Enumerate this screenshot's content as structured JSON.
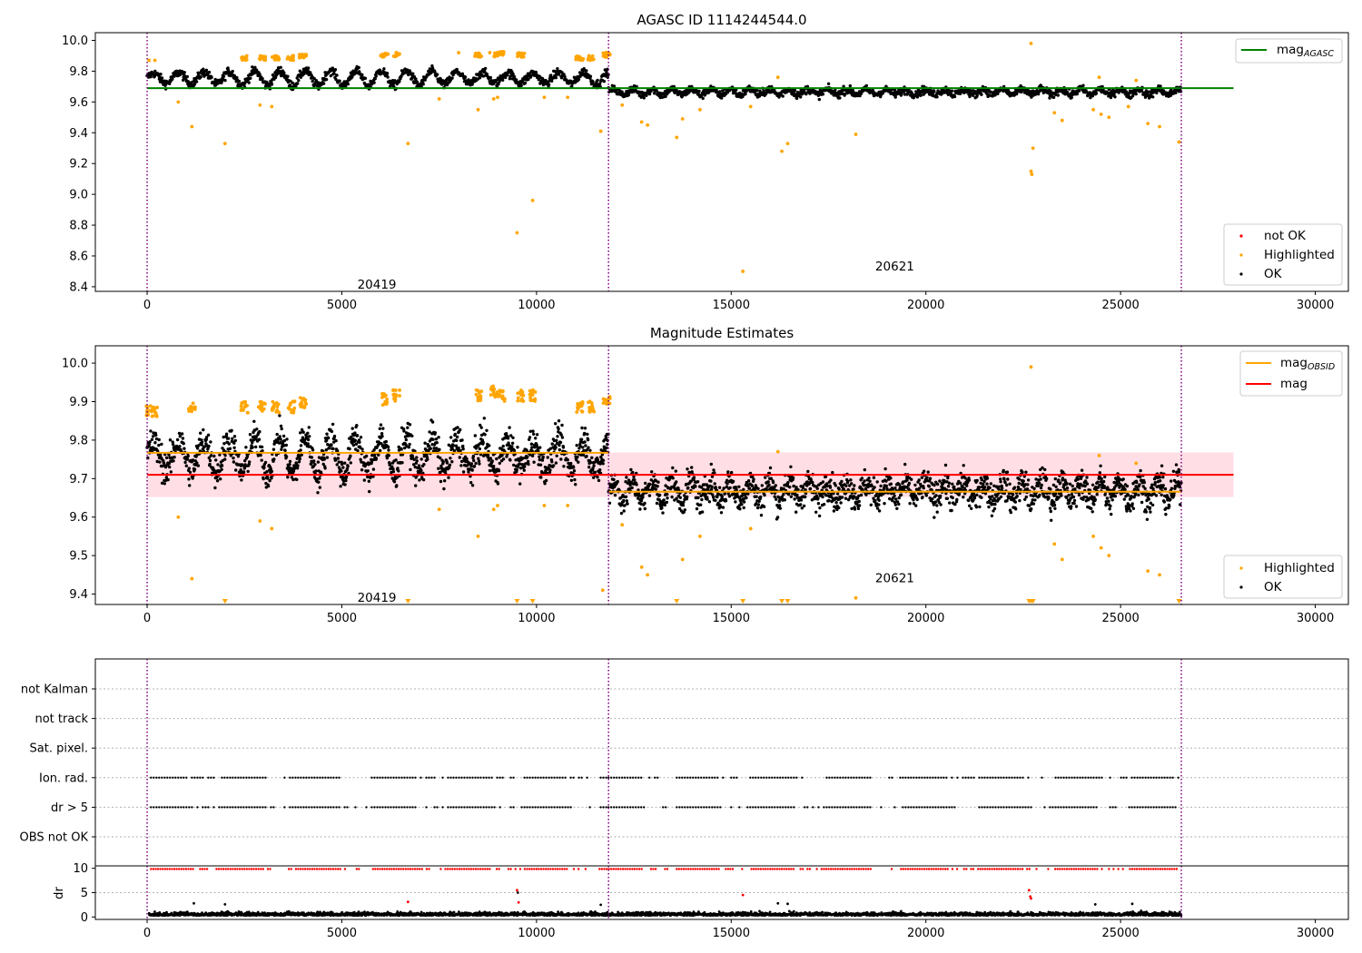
{
  "figure": {
    "title_top": "AGASC ID 1114244544.0",
    "title_mid": "Magnitude Estimates"
  },
  "colors": {
    "ok": "#000000",
    "highlighted": "#ffa500",
    "not_ok": "#ff0000",
    "mag_agasc": "#008000",
    "mag": "#ff0000",
    "mag_obsid": "#ffa500",
    "mag_band": "#ffc0cb",
    "obs_boundary": "#800080",
    "grid": "#b0b0b0"
  },
  "chart_data": [
    {
      "type": "scatter",
      "title": "AGASC ID 1114244544.0",
      "xlim": [
        -1330,
        30850
      ],
      "ylim": [
        8.37,
        10.05
      ],
      "xticks": [
        0,
        5000,
        10000,
        15000,
        20000,
        25000,
        30000
      ],
      "yticks": [
        8.4,
        8.6,
        8.8,
        9.0,
        9.2,
        9.4,
        9.6,
        9.8,
        10.0
      ],
      "ytick_labels": [
        "8.4",
        "8.6",
        "8.8",
        "9.0",
        "9.2",
        "9.4",
        "9.6",
        "9.8",
        "10.0"
      ],
      "obs_boundaries": [
        0,
        11850,
        26560
      ],
      "obs_labels": [
        {
          "text": "20419",
          "x": 5900,
          "y": 8.41
        },
        {
          "text": "20621",
          "x": 19200,
          "y": 8.53
        }
      ],
      "lines": [
        {
          "name": "mag_AGASC",
          "y": 9.69,
          "x": [
            0,
            27900
          ]
        }
      ],
      "segments": [
        {
          "x": [
            0,
            11850
          ],
          "base": 9.755,
          "amp": 0.05,
          "spread": 0.02,
          "period": 650
        },
        {
          "x": [
            11850,
            26560
          ],
          "base": 9.665,
          "amp": 0.02,
          "spread": 0.018,
          "period": 500
        }
      ],
      "highlighted": [
        [
          50,
          9.87
        ],
        [
          200,
          9.87
        ],
        [
          800,
          9.6
        ],
        [
          1150,
          9.44
        ],
        [
          2000,
          9.33
        ],
        [
          2500,
          9.88
        ],
        [
          2900,
          9.58
        ],
        [
          3200,
          9.57
        ],
        [
          3600,
          9.88
        ],
        [
          4000,
          9.89
        ],
        [
          6000,
          9.9
        ],
        [
          6400,
          9.92
        ],
        [
          6700,
          9.33
        ],
        [
          7500,
          9.62
        ],
        [
          8000,
          9.92
        ],
        [
          8500,
          9.55
        ],
        [
          8800,
          9.92
        ],
        [
          8900,
          9.62
        ],
        [
          9000,
          9.63
        ],
        [
          9500,
          8.75
        ],
        [
          9600,
          9.91
        ],
        [
          9900,
          8.96
        ],
        [
          10200,
          9.63
        ],
        [
          10800,
          9.63
        ],
        [
          11200,
          9.88
        ],
        [
          11650,
          9.41
        ],
        [
          11800,
          9.91
        ],
        [
          12200,
          9.58
        ],
        [
          12700,
          9.47
        ],
        [
          12850,
          9.45
        ],
        [
          13600,
          9.37
        ],
        [
          13750,
          9.49
        ],
        [
          14200,
          9.55
        ],
        [
          15300,
          8.5
        ],
        [
          15500,
          9.57
        ],
        [
          16200,
          9.76
        ],
        [
          16300,
          9.28
        ],
        [
          16450,
          9.33
        ],
        [
          18200,
          9.39
        ],
        [
          22700,
          9.98
        ],
        [
          22750,
          9.3
        ],
        [
          22700,
          9.15
        ],
        [
          22720,
          9.13
        ],
        [
          23300,
          9.53
        ],
        [
          23500,
          9.48
        ],
        [
          24300,
          9.55
        ],
        [
          24450,
          9.76
        ],
        [
          24500,
          9.52
        ],
        [
          24700,
          9.5
        ],
        [
          25200,
          9.57
        ],
        [
          25400,
          9.74
        ],
        [
          25700,
          9.46
        ],
        [
          26000,
          9.44
        ],
        [
          26500,
          9.34
        ]
      ],
      "highlighted_clusters": [
        [
          2500,
          9.88
        ],
        [
          2950,
          9.88
        ],
        [
          3300,
          9.88
        ],
        [
          3700,
          9.88
        ],
        [
          4000,
          9.89
        ],
        [
          6100,
          9.9
        ],
        [
          6400,
          9.9
        ],
        [
          8500,
          9.9
        ],
        [
          9000,
          9.9
        ],
        [
          9100,
          9.91
        ],
        [
          9600,
          9.9
        ],
        [
          11100,
          9.88
        ],
        [
          11400,
          9.88
        ],
        [
          11800,
          9.9
        ]
      ],
      "legend_lines": [
        "mag_AGASC"
      ],
      "legend_points": [
        "not OK",
        "Highlighted",
        "OK"
      ]
    },
    {
      "type": "scatter",
      "title": "Magnitude Estimates",
      "xlim": [
        -1330,
        30850
      ],
      "ylim": [
        9.373,
        10.045
      ],
      "xticks": [
        0,
        5000,
        10000,
        15000,
        20000,
        25000,
        30000
      ],
      "yticks": [
        9.4,
        9.5,
        9.6,
        9.7,
        9.8,
        9.9,
        10.0
      ],
      "ytick_labels": [
        "9.4",
        "9.5",
        "9.6",
        "9.7",
        "9.8",
        "9.9",
        "10.0"
      ],
      "obs_boundaries": [
        0,
        11850,
        26560
      ],
      "obs_labels": [
        {
          "text": "20419",
          "x": 5900,
          "y": 9.39
        },
        {
          "text": "20621",
          "x": 19200,
          "y": 9.44
        }
      ],
      "mag": 9.71,
      "mag_band": [
        9.652,
        9.768
      ],
      "mag_obsid": [
        {
          "x": [
            0,
            11850
          ],
          "y": 9.767
        },
        {
          "x": [
            11850,
            26560
          ],
          "y": 9.666
        }
      ],
      "segments": [
        {
          "x": [
            0,
            11850
          ],
          "base": 9.76,
          "amp": 0.05,
          "spread": 0.03,
          "period": 650
        },
        {
          "x": [
            11850,
            26560
          ],
          "base": 9.668,
          "amp": 0.025,
          "spread": 0.028,
          "period": 500
        }
      ],
      "highlighted": [
        [
          800,
          9.6
        ],
        [
          1150,
          9.44
        ],
        [
          2900,
          9.59
        ],
        [
          3200,
          9.57
        ],
        [
          7500,
          9.62
        ],
        [
          8500,
          9.55
        ],
        [
          8900,
          9.62
        ],
        [
          9000,
          9.63
        ],
        [
          10200,
          9.63
        ],
        [
          10800,
          9.63
        ],
        [
          11700,
          9.41
        ],
        [
          12200,
          9.58
        ],
        [
          12700,
          9.47
        ],
        [
          12850,
          9.45
        ],
        [
          13750,
          9.49
        ],
        [
          14200,
          9.55
        ],
        [
          15500,
          9.57
        ],
        [
          16200,
          9.77
        ],
        [
          18200,
          9.39
        ],
        [
          22700,
          9.99
        ],
        [
          23300,
          9.53
        ],
        [
          23500,
          9.49
        ],
        [
          24300,
          9.55
        ],
        [
          24450,
          9.76
        ],
        [
          24500,
          9.52
        ],
        [
          24700,
          9.5
        ],
        [
          25400,
          9.74
        ],
        [
          25700,
          9.46
        ],
        [
          26000,
          9.45
        ]
      ],
      "highlighted_clusters": [
        [
          50,
          9.87
        ],
        [
          200,
          9.87
        ],
        [
          1150,
          9.88
        ],
        [
          2500,
          9.88
        ],
        [
          2950,
          9.88
        ],
        [
          3300,
          9.88
        ],
        [
          3700,
          9.88
        ],
        [
          4000,
          9.89
        ],
        [
          6100,
          9.9
        ],
        [
          6400,
          9.91
        ],
        [
          8500,
          9.91
        ],
        [
          8900,
          9.92
        ],
        [
          9100,
          9.91
        ],
        [
          9600,
          9.91
        ],
        [
          9900,
          9.91
        ],
        [
          11100,
          9.88
        ],
        [
          11400,
          9.88
        ],
        [
          11800,
          9.9
        ]
      ],
      "below_axis_markers": [
        2000,
        6700,
        9500,
        9900,
        13600,
        15300,
        16300,
        16450,
        22650,
        22700,
        22750,
        26500
      ],
      "legend_lines": [
        "mag_OBSID",
        "mag"
      ],
      "legend_points": [
        "Highlighted",
        "OK"
      ]
    },
    {
      "type": "scatter",
      "title": "",
      "xlim": [
        -1330,
        30850
      ],
      "categories": [
        "not Kalman",
        "not track",
        "Sat. pixel.",
        "Ion. rad.",
        "dr > 5",
        "OBS not OK"
      ],
      "flagged_rows": [
        "Ion. rad.",
        "dr > 5"
      ],
      "obs_boundaries": [
        0,
        11850,
        26560
      ]
    },
    {
      "type": "scatter",
      "title": "",
      "ylabel": "dr",
      "xlim": [
        -1330,
        30850
      ],
      "ylim": [
        -0.5,
        10.5
      ],
      "xticks": [
        0,
        5000,
        10000,
        15000,
        20000,
        25000,
        30000
      ],
      "yticks": [
        0,
        5,
        10
      ],
      "ytick_labels": [
        "0",
        "5",
        "10"
      ],
      "obs_boundaries": [
        0,
        11850,
        26560
      ],
      "outliers": [
        [
          1200,
          2.8
        ],
        [
          2000,
          2.6
        ],
        [
          6700,
          3.1
        ],
        [
          9500,
          5.5
        ],
        [
          9520,
          5.0
        ],
        [
          9540,
          3.0
        ],
        [
          11650,
          2.5
        ],
        [
          15300,
          4.5
        ],
        [
          16200,
          2.8
        ],
        [
          16450,
          2.7
        ],
        [
          22650,
          5.5
        ],
        [
          22680,
          4.2
        ],
        [
          22700,
          3.8
        ],
        [
          24350,
          2.6
        ],
        [
          25300,
          2.7
        ]
      ]
    }
  ],
  "x_tick_labels": [
    "0",
    "5000",
    "10000",
    "15000",
    "20000",
    "25000",
    "30000"
  ]
}
